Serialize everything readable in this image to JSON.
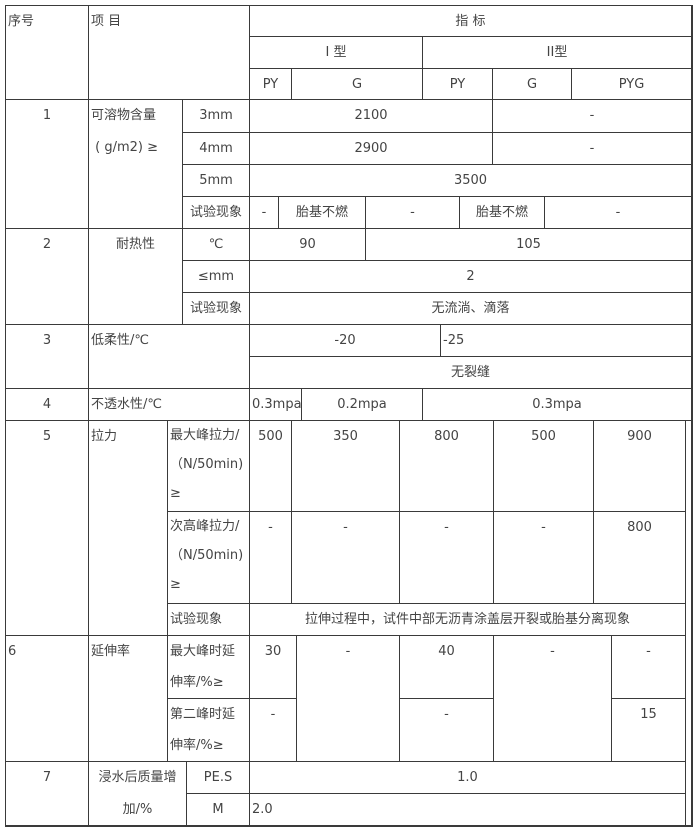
{
  "header": {
    "seq": "序号",
    "item": "项 目",
    "indicator": "指 标",
    "type1": "I 型",
    "type2": "II型",
    "cols": [
      "PY",
      "G",
      "PY",
      "G",
      "PYG"
    ]
  },
  "r1": {
    "seq": "1",
    "label": "可溶物含量\n ( g/m2) ≥",
    "sub": [
      "3mm",
      "4mm",
      "5mm",
      "试验现象"
    ],
    "v3mm": [
      "2100",
      "-"
    ],
    "v4mm": [
      "2900",
      "-"
    ],
    "v5mm": "3500",
    "test": [
      "-",
      "胎基不燃",
      "-",
      "胎基不燃",
      "-"
    ]
  },
  "r2": {
    "seq": "2",
    "label": "耐热性",
    "sub": [
      "℃",
      "≤mm",
      "试验现象"
    ],
    "temp": [
      "90",
      "105"
    ],
    "mm": "2",
    "test": "无流淌、滴落"
  },
  "r3": {
    "seq": "3",
    "label": "低柔性/℃",
    "temp": [
      "-20",
      "-25"
    ],
    "result": "无裂缝"
  },
  "r4": {
    "seq": "4",
    "label": "不透水性/℃",
    "values": [
      "0.3mpa",
      "0.2mpa",
      "0.3mpa"
    ]
  },
  "r5": {
    "seq": "5",
    "label": "拉力",
    "sub": [
      "最大峰拉力/\n（N/50min)\n≥",
      "次高峰拉力/\n（N/50min)\n≥",
      "试验现象"
    ],
    "max": [
      "500",
      "350",
      "800",
      "500",
      "900"
    ],
    "second": [
      "-",
      "-",
      "-",
      "-",
      "800"
    ],
    "test": "拉伸过程中，试件中部无沥青涂盖层开裂或胎基分离现象"
  },
  "r6": {
    "seq": "6",
    "label": "延伸率",
    "sub": [
      "最大峰时延\n伸率/%≥",
      "第二峰时延\n伸率/%≥"
    ],
    "max": [
      "30",
      "-",
      "40",
      "-",
      "-"
    ],
    "second": [
      "-",
      "-",
      "15"
    ]
  },
  "r7": {
    "seq": "7",
    "label": "浸水后质量增\n加/%",
    "sub": [
      "PE.S",
      "M"
    ],
    "values": [
      "1.0",
      "2.0"
    ]
  }
}
